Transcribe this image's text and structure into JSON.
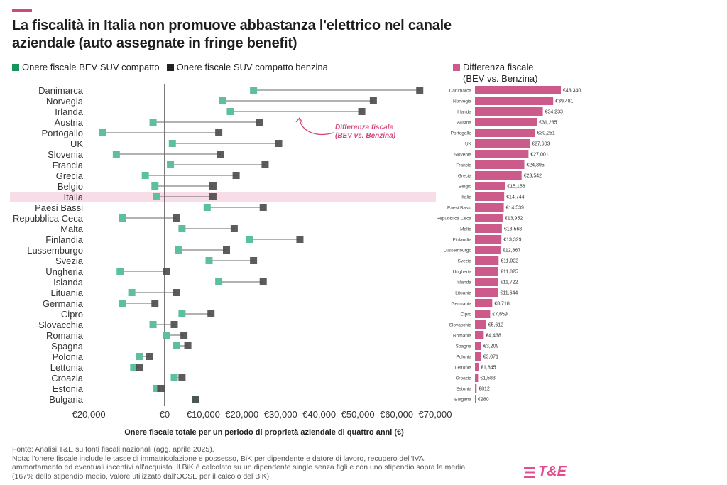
{
  "header": {
    "title": "La fiscalità in Italia non promuove abbastanza l'elettrico nel canale aziendale (auto assegnate in fringe benefit)"
  },
  "legend": {
    "bev": "Onere fiscale BEV SUV compatto",
    "petrol": "Onere fiscale SUV compatto benzina",
    "diff_line1": "Differenza fiscale",
    "diff_line2": "(BEV vs. Benzina)"
  },
  "annotation": {
    "line1": "Differenza fiscale",
    "line2": "(BEV vs. Benzina)"
  },
  "footer": {
    "source": "Fonte: Analisi T&E su fonti fiscali nazionali (agg. aprile 2025).",
    "note": "Nota: l'onere fiscale include le tasse di immatricolazione e possesso, BiK per dipendente e datore di lavoro, recupero dell'IVA, ammortamento ed eventuali incentivi all'acquisto. Il BiK è calcolato su un dipendente single senza figli e con uno stipendio sopra la media (167% dello stipendio medio, valore utilizzato dall'OCSE per il calcolo del BiK)."
  },
  "logo": {
    "text": "T&E"
  },
  "colors": {
    "bev": "#5cc09c",
    "petrol": "#4a4a4a",
    "diff_bar": "#cc5b8c",
    "highlight": "#f8dde8",
    "accent": "#d0497e"
  },
  "chart_data": [
    {
      "type": "dumbbell",
      "xlabel": "Onere fiscale totale per un periodo di proprietà aziendale di quattro anni (€)",
      "xlim": [
        -20000,
        70000
      ],
      "xticks": [
        -20000,
        0,
        10000,
        20000,
        30000,
        40000,
        50000,
        60000,
        70000
      ],
      "xtick_labels": [
        "-€20,000",
        "€0",
        "€10,000",
        "€20,000",
        "€30,000",
        "€40,000",
        "€50,000",
        "€60,000",
        "€70,000"
      ],
      "highlight": "Italia",
      "categories": [
        "Danimarca",
        "Norvegia",
        "Irlanda",
        "Austria",
        "Portogallo",
        "UK",
        "Slovenia",
        "Francia",
        "Grecia",
        "Belgio",
        "Italia",
        "Paesi Bassi",
        "Repubblica Ceca",
        "Malta",
        "Finlandia",
        "Lussemburgo",
        "Svezia",
        "Ungheria",
        "Islanda",
        "Lituania",
        "Germania",
        "Cipro",
        "Slovacchia",
        "Romania",
        "Spagna",
        "Polonia",
        "Lettonia",
        "Croazia",
        "Estonia",
        "Bulgaria"
      ],
      "series": [
        {
          "name": "Onere fiscale BEV SUV compatto",
          "values": [
            23000,
            15000,
            17000,
            -3000,
            -16000,
            2000,
            -12500,
            1500,
            -5000,
            -2500,
            -2000,
            11000,
            -11000,
            4500,
            22000,
            3500,
            11500,
            -11500,
            14000,
            -8500,
            -11000,
            4500,
            -3000,
            500,
            3000,
            -6500,
            -8000,
            2500,
            -2000,
            8000
          ]
        },
        {
          "name": "Onere fiscale SUV compatto benzina",
          "values": [
            66000,
            54000,
            51000,
            24500,
            14000,
            29500,
            14500,
            26000,
            18500,
            12500,
            12500,
            25500,
            3000,
            18000,
            35000,
            16000,
            23000,
            500,
            25500,
            3000,
            -2500,
            12000,
            2500,
            5000,
            6000,
            -4000,
            -6500,
            4500,
            -1000,
            8000
          ]
        }
      ]
    },
    {
      "type": "bar",
      "orientation": "horizontal",
      "title": "",
      "categories": [
        "Danimarca",
        "Norvegia",
        "Irlanda",
        "Austria",
        "Portogallo",
        "UK",
        "Slovenia",
        "Francia",
        "Grecia",
        "Belgio",
        "Italia",
        "Paesi Bassi",
        "Repubblica Ceca",
        "Malta",
        "Finlandia",
        "Lussemburgo",
        "Svezia",
        "Ungheria",
        "Islanda",
        "Lituania",
        "Germania",
        "Cipro",
        "Slovacchia",
        "Romania",
        "Spagna",
        "Polonia",
        "Lettonia",
        "Croazia",
        "Estonia",
        "Bulgaria"
      ],
      "values": [
        43340,
        39481,
        34233,
        31235,
        30251,
        27603,
        27001,
        24895,
        23542,
        15158,
        14744,
        14539,
        13952,
        13568,
        13329,
        12867,
        11922,
        11825,
        11722,
        11644,
        8718,
        7659,
        5612,
        4438,
        3209,
        3071,
        1845,
        1583,
        812,
        280
      ],
      "value_labels": [
        "€43,340",
        "€39,481",
        "€34,233",
        "€31,235",
        "€30,251",
        "€27,603",
        "€27,001",
        "€24,895",
        "€23,542",
        "€15,158",
        "€14,744",
        "€14,539",
        "€13,952",
        "€13,568",
        "€13,329",
        "€12,867",
        "€11,922",
        "€11,825",
        "€11,722",
        "€11,644",
        "€8,718",
        "€7,659",
        "€5,612",
        "€4,438",
        "€3,209",
        "€3,071",
        "€1,845",
        "€1,583",
        "€812",
        "€280"
      ]
    }
  ]
}
